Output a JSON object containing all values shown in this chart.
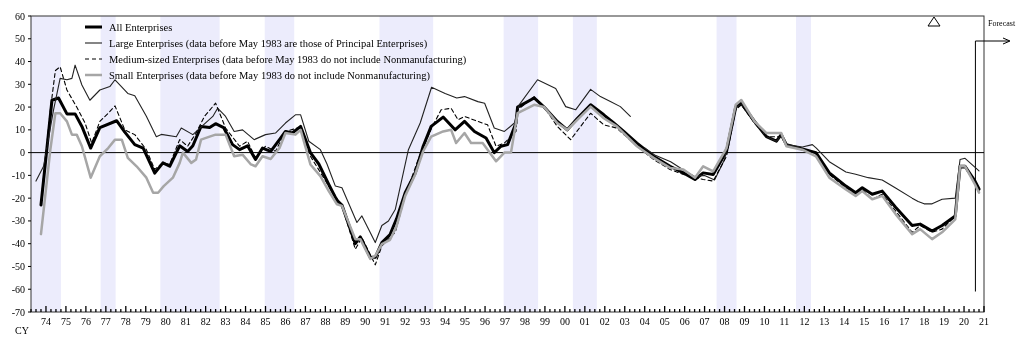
{
  "chart_data": {
    "type": "line",
    "xlabel": "CY",
    "legend": "top left",
    "xlim": [
      1973.25,
      2021
    ],
    "ylim": [
      -70,
      60
    ],
    "yticks": [
      -70,
      -60,
      -50,
      -40,
      -30,
      -20,
      -10,
      0,
      10,
      20,
      30,
      40,
      50,
      60
    ],
    "xticks": [
      {
        "value": 1974,
        "label": "74"
      },
      {
        "value": 1975,
        "label": "75"
      },
      {
        "value": 1976,
        "label": "76"
      },
      {
        "value": 1977,
        "label": "77"
      },
      {
        "value": 1978,
        "label": "78"
      },
      {
        "value": 1979,
        "label": "79"
      },
      {
        "value": 1980,
        "label": "80"
      },
      {
        "value": 1981,
        "label": "81"
      },
      {
        "value": 1982,
        "label": "82"
      },
      {
        "value": 1983,
        "label": "83"
      },
      {
        "value": 1984,
        "label": "84"
      },
      {
        "value": 1985,
        "label": "85"
      },
      {
        "value": 1986,
        "label": "86"
      },
      {
        "value": 1987,
        "label": "87"
      },
      {
        "value": 1988,
        "label": "88"
      },
      {
        "value": 1989,
        "label": "89"
      },
      {
        "value": 1990,
        "label": "90"
      },
      {
        "value": 1991,
        "label": "91"
      },
      {
        "value": 1992,
        "label": "92"
      },
      {
        "value": 1993,
        "label": "93"
      },
      {
        "value": 1994,
        "label": "94"
      },
      {
        "value": 1995,
        "label": "95"
      },
      {
        "value": 1996,
        "label": "96"
      },
      {
        "value": 1997,
        "label": "97"
      },
      {
        "value": 1998,
        "label": "98"
      },
      {
        "value": 1999,
        "label": "99"
      },
      {
        "value": 2000,
        "label": "00"
      },
      {
        "value": 2001,
        "label": "01"
      },
      {
        "value": 2002,
        "label": "02"
      },
      {
        "value": 2003,
        "label": "03"
      },
      {
        "value": 2004,
        "label": "04"
      },
      {
        "value": 2005,
        "label": "05"
      },
      {
        "value": 2006,
        "label": "06"
      },
      {
        "value": 2007,
        "label": "07"
      },
      {
        "value": 2008,
        "label": "08"
      },
      {
        "value": 2009,
        "label": "09"
      },
      {
        "value": 2010,
        "label": "10"
      },
      {
        "value": 2011,
        "label": "11"
      },
      {
        "value": 2012,
        "label": "12"
      },
      {
        "value": 2013,
        "label": "13"
      },
      {
        "value": 2014,
        "label": "14"
      },
      {
        "value": 2015,
        "label": "15"
      },
      {
        "value": 2016,
        "label": "16"
      },
      {
        "value": 2017,
        "label": "17"
      },
      {
        "value": 2018,
        "label": "18"
      },
      {
        "value": 2019,
        "label": "19"
      },
      {
        "value": 2020,
        "label": "20"
      },
      {
        "value": 2021,
        "label": "21"
      }
    ],
    "bands": [
      {
        "axis": "x",
        "from": 1973.25,
        "to": 1974.75,
        "color": "#ececfc"
      },
      {
        "axis": "x",
        "from": 1976.74,
        "to": 1977.49,
        "color": "#ececfc"
      },
      {
        "axis": "x",
        "from": 1979.73,
        "to": 1982.7,
        "color": "#ececfc"
      },
      {
        "axis": "x",
        "from": 1984.96,
        "to": 1986.44,
        "color": "#ececfc"
      },
      {
        "axis": "x",
        "from": 1990.71,
        "to": 1993.4,
        "color": "#ececfc"
      },
      {
        "axis": "x",
        "from": 1996.93,
        "to": 1998.66,
        "color": "#ececfc"
      },
      {
        "axis": "x",
        "from": 2000.4,
        "to": 2001.6,
        "color": "#ececfc"
      },
      {
        "axis": "x",
        "from": 2007.6,
        "to": 2008.6,
        "color": "#ececfc"
      },
      {
        "axis": "x",
        "from": 2011.58,
        "to": 2012.33,
        "color": "#ececfc"
      }
    ],
    "ref_lines": [
      {
        "axis": "y",
        "value": 0,
        "color": "#000000"
      },
      {
        "axis": "x",
        "value": 2020.57,
        "label": "Forecast",
        "color": "#000000"
      }
    ],
    "series": [
      {
        "name": "All Enterprises",
        "color": "#000000",
        "line_style": "solid",
        "x": [
          1973.75,
          1974.3,
          1974.63,
          1975.05,
          1975.46,
          1975.8,
          1976.24,
          1976.7,
          1977.54,
          1977.95,
          1978.45,
          1978.87,
          1979.45,
          1979.86,
          1980.2,
          1980.7,
          1981.1,
          1981.36,
          1981.77,
          1982.2,
          1982.5,
          1982.9,
          1983.35,
          1983.7,
          1984.1,
          1984.5,
          1984.85,
          1985.26,
          1985.7,
          1986.0,
          1986.34,
          1986.76,
          1987.25,
          1987.67,
          1988.17,
          1988.58,
          1988.83,
          1989.5,
          1989.75,
          1990.25,
          1990.5,
          1990.83,
          1991.24,
          1991.57,
          1992.0,
          1992.5,
          1992.9,
          1993.3,
          1993.9,
          1994.5,
          1994.97,
          1995.47,
          1996.05,
          1996.46,
          1996.8,
          1997.13,
          1997.55,
          1997.63,
          1998.46,
          1998.96,
          1999.62,
          2000.12,
          2000.62,
          2001.29,
          2001.95,
          2002.45,
          2002.95,
          2003.61,
          2004.44,
          2005.27,
          2005.94,
          2006.52,
          2006.93,
          2007.43,
          2008.1,
          2008.56,
          2008.84,
          2009.5,
          2010.1,
          2010.6,
          2010.84,
          2011.1,
          2011.9,
          2012.58,
          2013.25,
          2014.08,
          2014.57,
          2014.9,
          2015.4,
          2015.9,
          2016.57,
          2017.4,
          2017.8,
          2018.4,
          2018.9,
          2019.56,
          2019.8,
          2020.05,
          2020.55,
          2020.75
        ],
        "values": [
          -23,
          23,
          24,
          17,
          17,
          11.5,
          2,
          11,
          14,
          9,
          3.5,
          2,
          -9,
          -4.5,
          -6,
          3,
          0.5,
          3,
          11.5,
          11,
          12.7,
          11,
          3.5,
          1.3,
          3,
          -3,
          2,
          0.5,
          5.7,
          9.3,
          8.6,
          11.5,
          0,
          -5,
          -14,
          -21,
          -23,
          -40,
          -37,
          -46,
          -46,
          -39.5,
          -36,
          -29,
          -17.6,
          -9,
          2.8,
          11.5,
          15.6,
          10,
          13.7,
          9.3,
          6.4,
          0,
          2.8,
          3.5,
          13,
          20,
          24,
          20,
          13.7,
          10,
          15,
          21,
          16.6,
          13,
          9.3,
          4.2,
          -1.6,
          -6,
          -8.9,
          -11.8,
          -8.9,
          -9.6,
          0.6,
          20,
          21.7,
          13.7,
          7,
          5,
          7.9,
          3.5,
          1.6,
          0,
          -8.9,
          -14.7,
          -17.6,
          -15.4,
          -18.3,
          -16.9,
          -24,
          -32,
          -31.4,
          -34.4,
          -32,
          -27.8,
          -6,
          -6,
          -12.5,
          -16
        ]
      },
      {
        "name": "Large Enterprises (data before May 1983 are those of Principal Enterprises)",
        "color": "#222222",
        "line_style": "solid",
        "x": [
          1973.5,
          1973.88,
          1974.38,
          1974.71,
          1975.05,
          1975.3,
          1975.46,
          1975.8,
          1976.2,
          1976.7,
          1977.2,
          1977.46,
          1978.1,
          1978.45,
          1979.03,
          1979.53,
          1979.78,
          1980.53,
          1980.78,
          1981.36,
          1981.86,
          1982.36,
          1982.6,
          1983.0,
          1983.43,
          1983.85,
          1984.43,
          1985.0,
          1985.5,
          1986.0,
          1986.5,
          1986.76,
          1987.17,
          1987.75,
          1988.08,
          1988.5,
          1988.83,
          1989.58,
          1989.83,
          1990.5,
          1990.83,
          1991.16,
          1991.5,
          1992.16,
          1992.75,
          1993.32,
          1994.0,
          1994.58,
          1994.97,
          1995.64,
          1995.98,
          1996.46,
          1996.97,
          1997.47,
          1997.71,
          1998.63,
          1999.54,
          2000.04,
          2000.54,
          2001.29,
          2001.78,
          2002.28,
          2002.78,
          2003.28,
          2003.6,
          2004.0,
          2004.5,
          2005.3,
          2006.0,
          2006.5,
          2007.0,
          2007.5,
          2008.0,
          2008.56,
          2008.84,
          2009.5,
          2010.1,
          2010.6,
          2010.84,
          2011.1,
          2011.9,
          2012.4,
          2012.6,
          2013.25,
          2014.08,
          2014.57,
          2015.2,
          2015.9,
          2016.57,
          2017.4,
          2017.7,
          2018.0,
          2018.4,
          2018.9,
          2019.56,
          2019.8,
          2020.05,
          2020.75
        ],
        "values": [
          -12.5,
          -6,
          18.8,
          32.6,
          32,
          32.6,
          38.4,
          29.7,
          23,
          27.5,
          29,
          32,
          26,
          25,
          16,
          7,
          8,
          7,
          10.8,
          7.9,
          12,
          15.9,
          19.5,
          15.9,
          9.3,
          10,
          5.7,
          7.9,
          8.6,
          13,
          16.6,
          16.6,
          5,
          1.3,
          -5,
          -14.7,
          -15.4,
          -30.7,
          -27.8,
          -39.5,
          -32,
          -30,
          -25,
          1.3,
          13,
          28.7,
          26,
          24,
          24.6,
          22.4,
          21.7,
          10.8,
          9.3,
          13,
          21,
          32,
          28.2,
          20.2,
          18.8,
          27.8,
          24.6,
          22.4,
          20.2,
          15.9,
          null,
          2,
          -1,
          -4,
          -8,
          -10.5,
          -10,
          -12,
          -3,
          20,
          21,
          13,
          7,
          5,
          7.5,
          3.5,
          2.5,
          3.5,
          2,
          -4,
          -8.5,
          -9.5,
          -11,
          -12,
          -15.5,
          -20,
          -21.5,
          -22.5,
          -22.5,
          -20.5,
          -20,
          -3,
          -2.5,
          -8
        ]
      },
      {
        "name": "Medium-sized Enterprises (data before May 1983 do not include Nonmanufacturing)",
        "color": "#000000",
        "line_style": "dashed",
        "x": [
          1973.75,
          1974.22,
          1974.47,
          1974.71,
          1975.05,
          1975.54,
          1975.96,
          1976.29,
          1976.7,
          1977.12,
          1977.46,
          1977.95,
          1978.45,
          1979.03,
          1979.45,
          1979.86,
          1980.2,
          1980.7,
          1981.1,
          1981.52,
          1981.94,
          1982.5,
          1983.0,
          1983.7,
          1984.1,
          1984.5,
          1985.0,
          1985.5,
          1986.0,
          1986.76,
          1987.25,
          1988.17,
          1988.83,
          1989.5,
          1989.83,
          1990.5,
          1990.83,
          1991.5,
          1992.0,
          1992.65,
          1993.32,
          1993.8,
          1994.3,
          1994.65,
          1994.97,
          1995.64,
          1996.13,
          1996.55,
          1996.97,
          1997.55,
          1997.63,
          1998.46,
          1998.96,
          1999.62,
          2000.29,
          2001.29,
          2001.95,
          2002.6,
          2003.61,
          2004.44,
          2005.27,
          2005.94,
          2006.93,
          2007.43,
          2008.1,
          2008.56,
          2008.84,
          2009.5,
          2010.1,
          2010.84,
          2011.1,
          2011.9,
          2012.58,
          2013.25,
          2014.08,
          2014.57,
          2014.9,
          2015.4,
          2015.9,
          2016.57,
          2017.4,
          2017.8,
          2018.4,
          2018.9,
          2019.56,
          2019.8,
          2020.05,
          2020.55,
          2020.75
        ],
        "values": [
          -22,
          18.8,
          36,
          37.7,
          27.5,
          20,
          13,
          4.2,
          13.7,
          17.3,
          20.5,
          10,
          7.9,
          1.3,
          -7.4,
          -4.5,
          -5.2,
          5.7,
          2.8,
          8.6,
          15.9,
          21.7,
          10.8,
          2.8,
          5,
          -2.3,
          2.8,
          0.6,
          9.3,
          11.2,
          -1.6,
          -14.7,
          -23.4,
          -42.4,
          -37.3,
          -49.3,
          -40.9,
          -35,
          -19,
          -3,
          10.8,
          18.8,
          19.5,
          14.4,
          15.9,
          13.7,
          12.2,
          2.8,
          4.2,
          9.3,
          18.8,
          24.6,
          20,
          11.5,
          5.7,
          17.3,
          12.2,
          10.8,
          2.8,
          -3,
          -7.4,
          -9.6,
          -11.8,
          -12.5,
          -1.6,
          18.8,
          21,
          13,
          7,
          7,
          3,
          1.3,
          -0.4,
          -9.6,
          -15.4,
          -18.3,
          -16,
          -20.5,
          -18.3,
          -25.6,
          -35,
          -32,
          -35,
          -33.6,
          -27.8,
          -6.7,
          -6.7,
          -13.2,
          -16.9
        ]
      },
      {
        "name": "Small Enterprises (data before May 1983 do not include Nonmanufacturing)",
        "color": "#a6a6a6",
        "line_style": "solid",
        "x": [
          1973.75,
          1974.22,
          1974.47,
          1974.71,
          1975.05,
          1975.3,
          1975.54,
          1975.8,
          1976.24,
          1976.7,
          1977.12,
          1977.46,
          1977.8,
          1978.1,
          1978.54,
          1979.03,
          1979.37,
          1979.62,
          1979.9,
          1980.36,
          1980.7,
          1980.86,
          1981.28,
          1981.52,
          1981.77,
          1982.2,
          1982.5,
          1983.0,
          1983.43,
          1983.85,
          1984.27,
          1984.5,
          1984.85,
          1985.26,
          1985.7,
          1986.0,
          1986.5,
          1986.76,
          1987.25,
          1987.75,
          1988.17,
          1988.58,
          1988.83,
          1989.5,
          1989.75,
          1990.25,
          1990.5,
          1990.83,
          1991.24,
          1991.57,
          1992.0,
          1992.5,
          1992.9,
          1993.3,
          1993.9,
          1994.3,
          1994.55,
          1994.97,
          1995.3,
          1995.88,
          1996.55,
          1996.97,
          1997.3,
          1997.63,
          1998.46,
          1998.96,
          1999.62,
          2000.12,
          2000.62,
          2001.29,
          2001.95,
          2002.6,
          2003.61,
          2004.44,
          2005.27,
          2005.94,
          2006.52,
          2006.93,
          2007.43,
          2008.1,
          2008.56,
          2008.84,
          2009.5,
          2010.1,
          2010.84,
          2011.1,
          2011.9,
          2012.58,
          2013.25,
          2014.08,
          2014.57,
          2014.9,
          2015.4,
          2015.9,
          2016.57,
          2017.4,
          2017.8,
          2018.4,
          2018.9,
          2019.56,
          2019.8,
          2020.05,
          2020.55,
          2020.75
        ],
        "values": [
          -35.8,
          1.3,
          17.3,
          17.3,
          13.7,
          7.9,
          7.9,
          2.8,
          -11,
          -1.6,
          2,
          5.7,
          5.7,
          -2.3,
          -6,
          -11,
          -17.6,
          -17.6,
          -14.7,
          -11,
          -4.5,
          0,
          -4.5,
          -3,
          5.7,
          7,
          7.9,
          7.9,
          -1.6,
          -0.9,
          -5.2,
          -6,
          -1.6,
          -2.8,
          2,
          8.6,
          7.9,
          10,
          -5.2,
          -10.3,
          -16.9,
          -22.7,
          -23.4,
          -38,
          -38,
          -46.7,
          -45.3,
          -40.2,
          -38.3,
          -32.2,
          -19,
          -9.6,
          0.6,
          7,
          9.3,
          10,
          4.2,
          8.6,
          4.2,
          4.2,
          -3.8,
          0,
          0,
          17.3,
          21,
          20,
          13,
          10,
          14.4,
          20.2,
          15.1,
          11.5,
          2.8,
          -2.3,
          -6.7,
          -7.4,
          -11,
          -6,
          -8.2,
          2,
          21,
          23.1,
          13.7,
          8.6,
          8.6,
          2.8,
          1.3,
          -1.6,
          -11,
          -16.2,
          -19,
          -16.9,
          -20.5,
          -19,
          -27,
          -35.8,
          -33.6,
          -38,
          -35,
          -29.3,
          -6,
          -6,
          -14,
          -17.6
        ]
      }
    ]
  }
}
